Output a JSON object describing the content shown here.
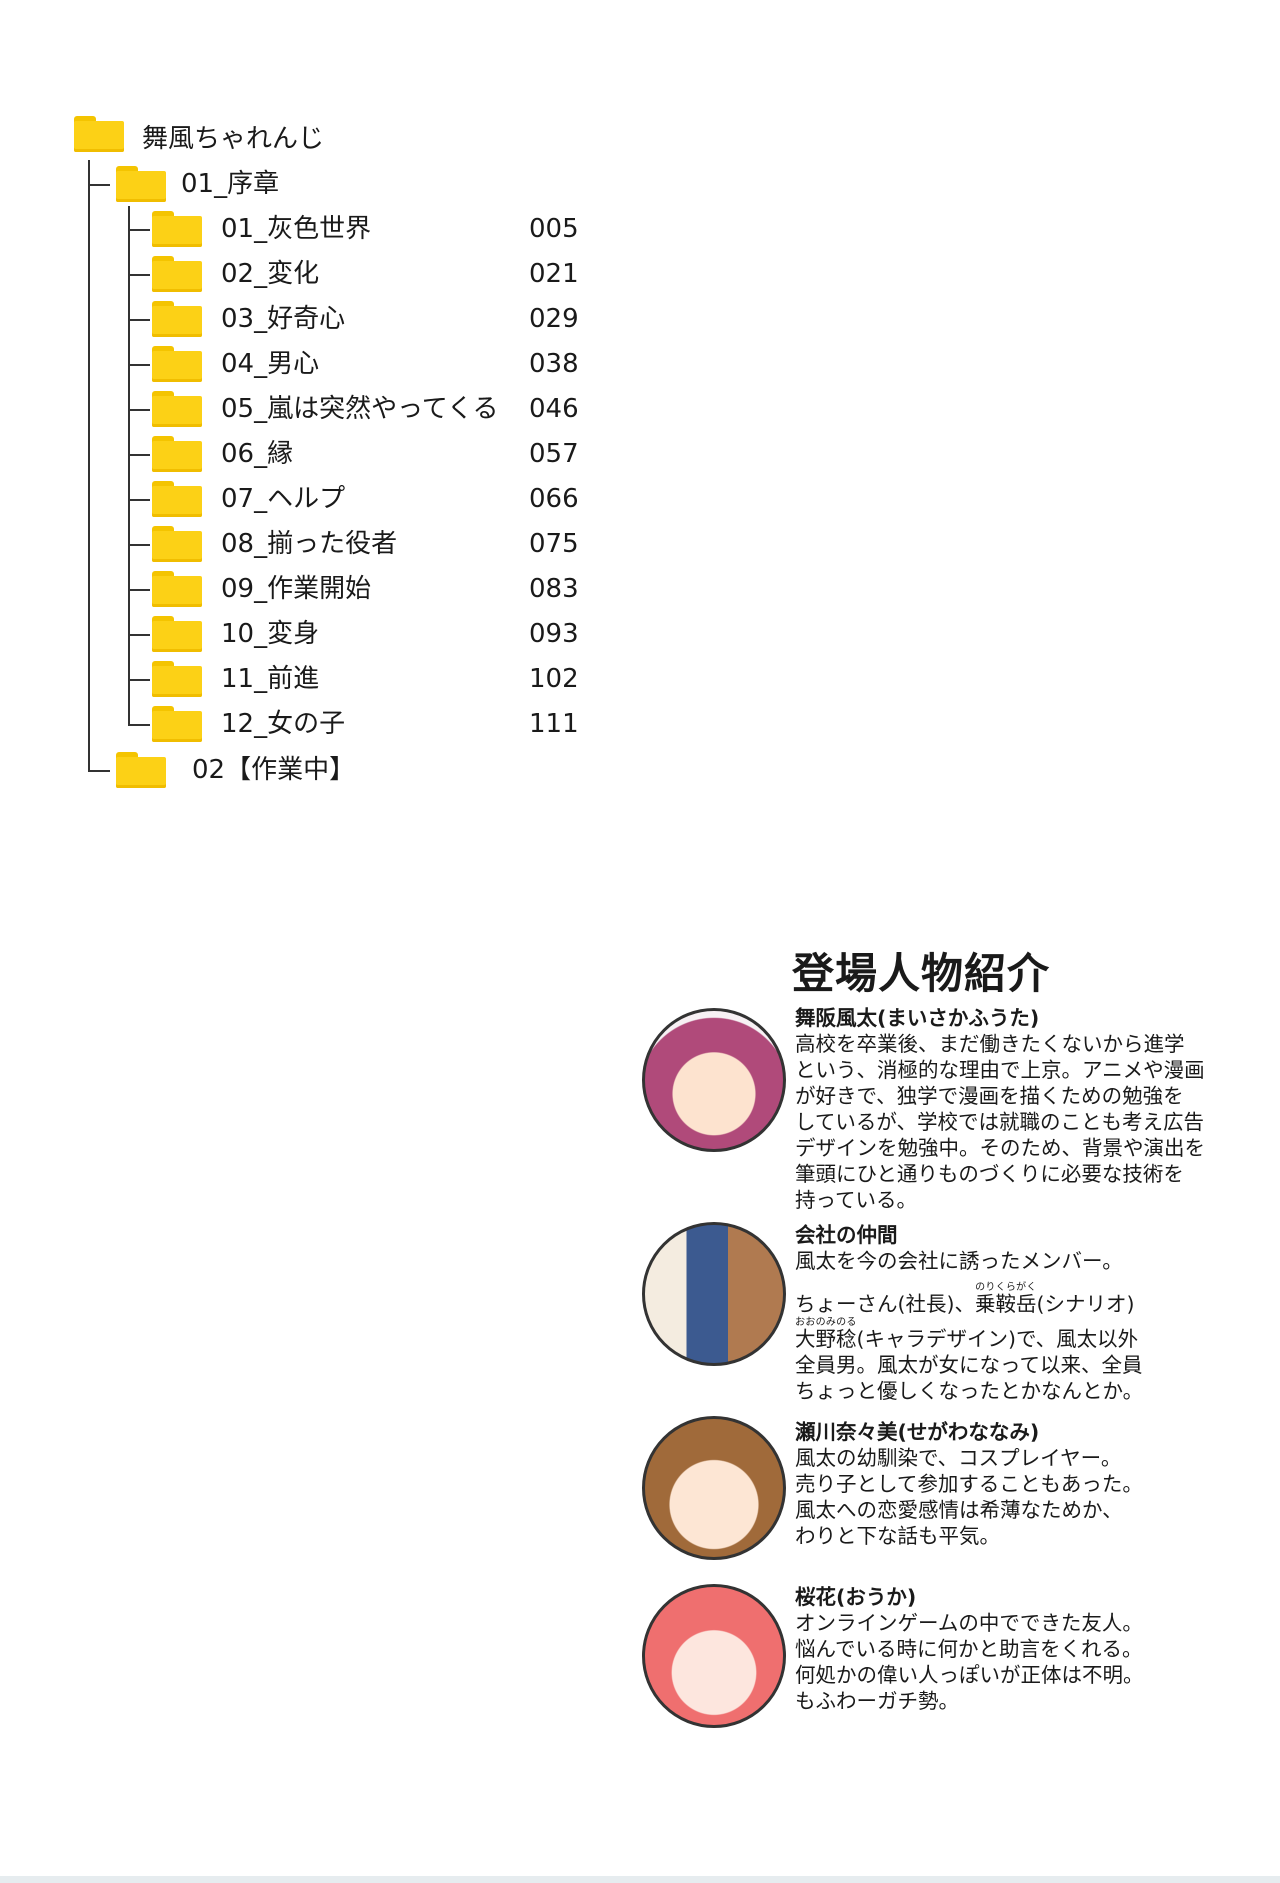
{
  "tree": {
    "root": "舞風ちゃれんじ",
    "volume1": "01_序章",
    "chapters": [
      {
        "label": "01_灰色世界",
        "page": "005"
      },
      {
        "label": "02_変化",
        "page": "021"
      },
      {
        "label": "03_好奇心",
        "page": "029"
      },
      {
        "label": "04_男心",
        "page": "038"
      },
      {
        "label": "05_嵐は突然やってくる",
        "page": "046"
      },
      {
        "label": "06_縁",
        "page": "057"
      },
      {
        "label": "07_ヘルプ",
        "page": "066"
      },
      {
        "label": "08_揃った役者",
        "page": "075"
      },
      {
        "label": "09_作業開始",
        "page": "083"
      },
      {
        "label": "10_変身",
        "page": "093"
      },
      {
        "label": "11_前進",
        "page": "102"
      },
      {
        "label": "12_女の子",
        "page": "111"
      }
    ],
    "volume2": "02【作業中】",
    "folder_color": "#fcd116"
  },
  "characters": {
    "title": "登場人物紹介",
    "items": [
      {
        "name": "舞阪風太(まいさかふうた)",
        "lines": [
          "高校を卒業後、まだ働きたくないから進学",
          "という、消極的な理由で上京。アニメや漫画",
          "が好きで、独学で漫画を描くための勉強を",
          "しているが、学校では就職のことも考え広告",
          "デザインを勉強中。そのため、背景や演出を",
          "筆頭にひと通りものづくりに必要な技術を",
          "持っている。"
        ]
      },
      {
        "name": "会社の仲間",
        "lines": [
          "風太を今の会社に誘ったメンバー。"
        ],
        "line2_pre": "ちょーさん(社長)、",
        "line2_ruby": "乗鞍岳",
        "line2_rt": "のりくらがく",
        "line2_post": "(シナリオ)",
        "line3_ruby": "大野稔",
        "line3_rt": "おおのみのる",
        "line3_post": "(キャラデザイン)で、風太以外",
        "lines_end": [
          "全員男。風太が女になって以来、全員",
          "ちょっと優しくなったとかなんとか。"
        ]
      },
      {
        "name": "瀬川奈々美(せがわななみ)",
        "lines": [
          "風太の幼馴染で、コスプレイヤー。",
          "売り子として参加することもあった。",
          "風太への恋愛感情は希薄なためか、",
          "わりと下な話も平気。"
        ]
      },
      {
        "name": "桜花(おうか)",
        "lines": [
          "オンラインゲームの中でできた友人。",
          "悩んでいる時に何かと助言をくれる。",
          "何処かの偉い人っぽいが正体は不明。",
          "もふわーガチ勢。"
        ]
      }
    ]
  }
}
